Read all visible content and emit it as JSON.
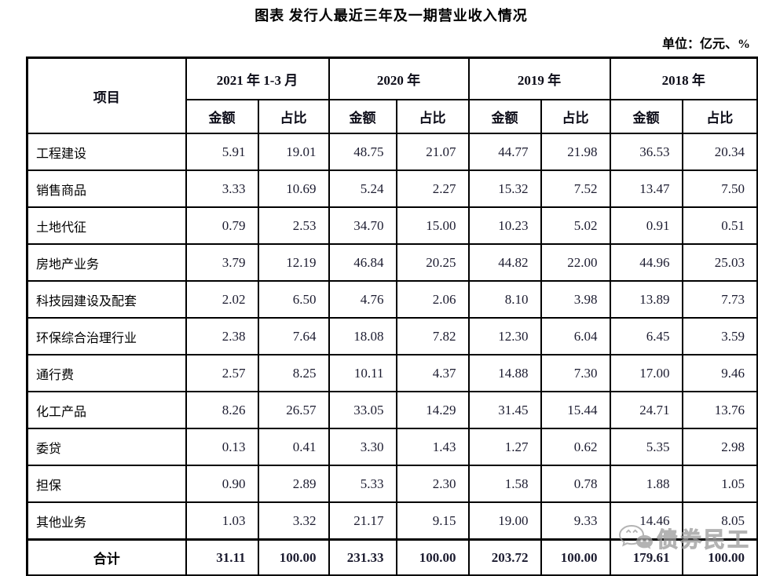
{
  "page": {
    "title": "图表 发行人最近三年及一期营业收入情况",
    "unit_label": "单位：亿元、%"
  },
  "table": {
    "item_header": "项目",
    "period_groups": [
      "2021 年 1-3 月",
      "2020 年",
      "2019 年",
      "2018 年"
    ],
    "sub_headers": [
      "金额",
      "占比"
    ],
    "rows": [
      {
        "name": "工程建设",
        "values": [
          "5.91",
          "19.01",
          "48.75",
          "21.07",
          "44.77",
          "21.98",
          "36.53",
          "20.34"
        ]
      },
      {
        "name": "销售商品",
        "values": [
          "3.33",
          "10.69",
          "5.24",
          "2.27",
          "15.32",
          "7.52",
          "13.47",
          "7.50"
        ]
      },
      {
        "name": "土地代征",
        "values": [
          "0.79",
          "2.53",
          "34.70",
          "15.00",
          "10.23",
          "5.02",
          "0.91",
          "0.51"
        ]
      },
      {
        "name": "房地产业务",
        "values": [
          "3.79",
          "12.19",
          "46.84",
          "20.25",
          "44.82",
          "22.00",
          "44.96",
          "25.03"
        ]
      },
      {
        "name": "科技园建设及配套",
        "values": [
          "2.02",
          "6.50",
          "4.76",
          "2.06",
          "8.10",
          "3.98",
          "13.89",
          "7.73"
        ]
      },
      {
        "name": "环保综合治理行业",
        "values": [
          "2.38",
          "7.64",
          "18.08",
          "7.82",
          "12.30",
          "6.04",
          "6.45",
          "3.59"
        ]
      },
      {
        "name": "通行费",
        "values": [
          "2.57",
          "8.25",
          "10.11",
          "4.37",
          "14.88",
          "7.30",
          "17.00",
          "9.46"
        ]
      },
      {
        "name": "化工产品",
        "values": [
          "8.26",
          "26.57",
          "33.05",
          "14.29",
          "31.45",
          "15.44",
          "24.71",
          "13.76"
        ]
      },
      {
        "name": "委贷",
        "values": [
          "0.13",
          "0.41",
          "3.30",
          "1.43",
          "1.27",
          "0.62",
          "5.35",
          "2.98"
        ]
      },
      {
        "name": "担保",
        "values": [
          "0.90",
          "2.89",
          "5.33",
          "2.30",
          "1.58",
          "0.78",
          "1.88",
          "1.05"
        ]
      },
      {
        "name": "其他业务",
        "values": [
          "1.03",
          "3.32",
          "21.17",
          "9.15",
          "19.00",
          "9.33",
          "14.46",
          "8.05"
        ]
      },
      {
        "name": "合计",
        "total": true,
        "values": [
          "31.11",
          "100.00",
          "231.33",
          "100.00",
          "203.72",
          "100.00",
          "179.61",
          "100.00"
        ]
      }
    ]
  },
  "watermark": {
    "text": "债券民工",
    "icon": "wechat-chat-bubbles-icon",
    "color": "#9e9e9e"
  },
  "colors": {
    "background": "#ffffff",
    "border": "#000000",
    "text": "#000000",
    "number_text": "#1c1c30"
  }
}
